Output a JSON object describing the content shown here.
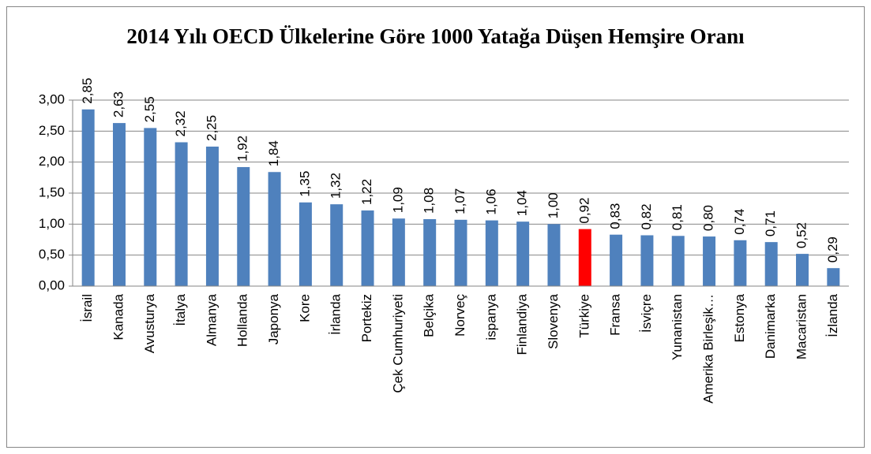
{
  "chart_data": {
    "type": "bar",
    "title": "2014 Yılı OECD Ülkelerine Göre 1000 Yatağa Düşen Hemşire Oranı",
    "categories": [
      "İsrail",
      "Kanada",
      "Avusturya",
      "İtalya",
      "Almanya",
      "Hollanda",
      "Japonya",
      "Kore",
      "İrlanda",
      "Portekiz",
      "Çek Cumhuriyeti",
      "Belçika",
      "Norveç",
      "ispanya",
      "Finlandiya",
      "Slovenya",
      "Türkiye",
      "Fransa",
      "İsviçre",
      "Yunanistan",
      "Amerika Birleşik…",
      "Estonya",
      "Danimarka",
      "Macaristan",
      "İzlanda"
    ],
    "values": [
      2.85,
      2.63,
      2.55,
      2.32,
      2.25,
      1.92,
      1.84,
      1.35,
      1.32,
      1.22,
      1.09,
      1.08,
      1.07,
      1.06,
      1.04,
      1.0,
      0.92,
      0.83,
      0.82,
      0.81,
      0.8,
      0.74,
      0.71,
      0.52,
      0.29
    ],
    "value_labels": [
      "2,85",
      "2,63",
      "2,55",
      "2,32",
      "2,25",
      "1,92",
      "1,84",
      "1,35",
      "1,32",
      "1,22",
      "1,09",
      "1,08",
      "1,07",
      "1,06",
      "1,04",
      "1,00",
      "0,92",
      "0,83",
      "0,82",
      "0,81",
      "0,80",
      "0,74",
      "0,71",
      "0,52",
      "0,29"
    ],
    "colors": [
      "#4f81bd",
      "#4f81bd",
      "#4f81bd",
      "#4f81bd",
      "#4f81bd",
      "#4f81bd",
      "#4f81bd",
      "#4f81bd",
      "#4f81bd",
      "#4f81bd",
      "#4f81bd",
      "#4f81bd",
      "#4f81bd",
      "#4f81bd",
      "#4f81bd",
      "#4f81bd",
      "#ff0000",
      "#4f81bd",
      "#4f81bd",
      "#4f81bd",
      "#4f81bd",
      "#4f81bd",
      "#4f81bd",
      "#4f81bd",
      "#4f81bd"
    ],
    "ylim": [
      0,
      3
    ],
    "yticks": [
      {
        "value": 0,
        "label": "0,00"
      },
      {
        "value": 0.5,
        "label": "0,50"
      },
      {
        "value": 1,
        "label": "1,00"
      },
      {
        "value": 1.5,
        "label": "1,50"
      },
      {
        "value": 2,
        "label": "2,00"
      },
      {
        "value": 2.5,
        "label": "2,50"
      },
      {
        "value": 3,
        "label": "3,00"
      }
    ],
    "grid": true
  }
}
